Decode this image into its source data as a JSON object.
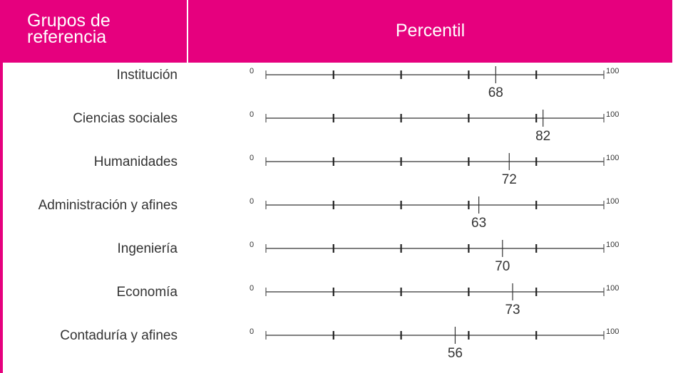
{
  "header": {
    "groups_title_line1": "Grupos de",
    "groups_title_line2": "referencia",
    "percentile_title": "Percentil",
    "background_color": "#e6007e",
    "text_color": "#ffffff"
  },
  "chart_data": {
    "type": "dot-on-scale",
    "xlim": [
      0,
      100
    ],
    "axis_min_label": "0",
    "axis_max_label": "100",
    "major_ticks": [
      0,
      20,
      40,
      60,
      80,
      100
    ],
    "categories": [
      "Institución",
      "Ciencias sociales",
      "Humanidades",
      "Administración y afines",
      "Ingeniería",
      "Economía",
      "Contaduría y afines"
    ],
    "values": [
      68,
      82,
      72,
      63,
      70,
      73,
      56
    ],
    "line_color": "#555555",
    "marker_color": "#333333"
  }
}
